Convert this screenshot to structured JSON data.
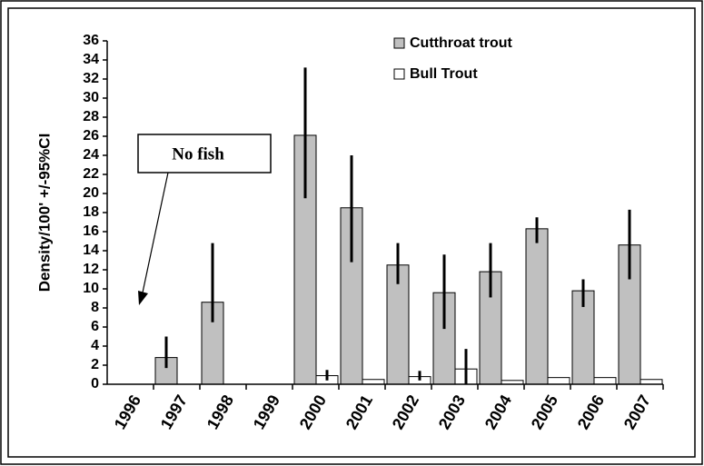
{
  "chart_data": {
    "type": "bar",
    "ylabel": "Density/100' +/-95%CI",
    "categories": [
      "1996",
      "1997",
      "1998",
      "1999",
      "2000",
      "2001",
      "2002",
      "2003",
      "2004",
      "2005",
      "2006",
      "2007"
    ],
    "series": [
      {
        "name": "Cutthroat trout",
        "color": "#c0c0c0",
        "values": [
          null,
          2.8,
          8.6,
          null,
          26.1,
          18.5,
          12.5,
          9.6,
          11.8,
          16.3,
          9.8,
          14.6
        ],
        "lower": [
          null,
          1.7,
          6.5,
          null,
          19.5,
          12.8,
          10.5,
          5.8,
          9.1,
          14.8,
          8.1,
          11
        ],
        "upper": [
          null,
          5,
          14.8,
          null,
          33.2,
          24,
          14.8,
          13.6,
          14.8,
          17.5,
          11,
          18.3
        ]
      },
      {
        "name": "Bull Trout",
        "color": "#ffffff",
        "values": [
          null,
          null,
          null,
          null,
          0.9,
          0.5,
          0.8,
          1.6,
          0.4,
          0.7,
          0.7,
          0.5
        ],
        "lower": [
          null,
          null,
          null,
          null,
          0.4,
          null,
          0.4,
          0,
          null,
          null,
          null,
          null
        ],
        "upper": [
          null,
          null,
          null,
          null,
          1.5,
          null,
          1.4,
          3.7,
          null,
          null,
          null,
          null
        ]
      }
    ],
    "ylim": [
      0,
      36
    ],
    "yticks": [
      0,
      2,
      4,
      6,
      8,
      10,
      12,
      14,
      16,
      18,
      20,
      22,
      24,
      26,
      28,
      30,
      32,
      34,
      36
    ],
    "annotation": "No fish"
  }
}
